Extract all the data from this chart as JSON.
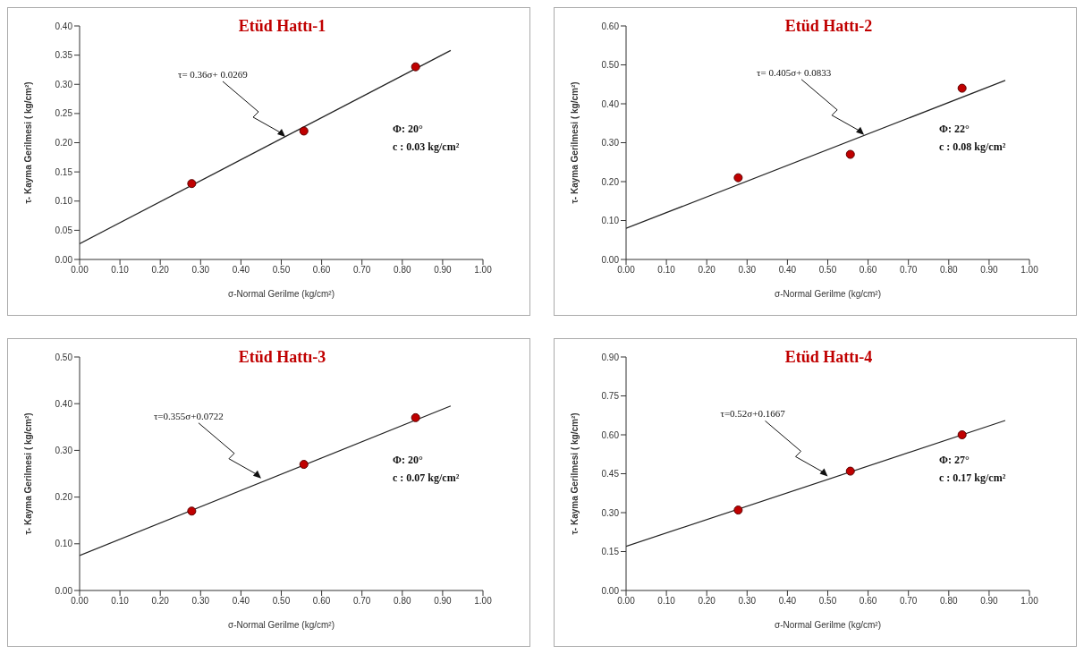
{
  "chart_data": [
    {
      "type": "scatter",
      "title": "Etüd Hattı-1",
      "xlabel": "σ-Normal Gerilme (kg/cm²)",
      "ylabel": "τ- Kayma Gerilmesi ( kg/cm²)",
      "grid": false,
      "legend": false,
      "xlim": [
        0,
        1
      ],
      "xticks": [
        {
          "value": 0,
          "label": "0.00"
        },
        {
          "value": 0.1,
          "label": "0.10"
        },
        {
          "value": 0.2,
          "label": "0.20"
        },
        {
          "value": 0.3,
          "label": "0.30"
        },
        {
          "value": 0.4,
          "label": "0.40"
        },
        {
          "value": 0.5,
          "label": "0.50"
        },
        {
          "value": 0.6,
          "label": "0.60"
        },
        {
          "value": 0.7,
          "label": "0.70"
        },
        {
          "value": 0.8,
          "label": "0.80"
        },
        {
          "value": 0.9,
          "label": "0.90"
        },
        {
          "value": 1,
          "label": "1.00"
        }
      ],
      "ylim": [
        0,
        0.4
      ],
      "yticks": [
        {
          "value": 0,
          "label": "0.00"
        },
        {
          "value": 0.05,
          "label": "0.05"
        },
        {
          "value": 0.1,
          "label": "0.10"
        },
        {
          "value": 0.15,
          "label": "0.15"
        },
        {
          "value": 0.2,
          "label": "0.20"
        },
        {
          "value": 0.25,
          "label": "0.25"
        },
        {
          "value": 0.3,
          "label": "0.30"
        },
        {
          "value": 0.35,
          "label": "0.35"
        },
        {
          "value": 0.4,
          "label": "0.40"
        }
      ],
      "series": [
        {
          "marker": "circle",
          "color": "#c00000",
          "x": [
            0.278,
            0.556,
            0.833
          ],
          "values": [
            0.13,
            0.22,
            0.33
          ]
        },
        {
          "type": "line",
          "marker": "none",
          "color": "#222222",
          "x": [
            0,
            0.92
          ],
          "values": [
            0.027,
            0.358
          ]
        }
      ],
      "annotations": [
        {
          "text": "τ= 0.36σ+ 0.0269",
          "x": 0.51,
          "y": 0.21
        },
        "Φ: 20°",
        "c : 0.03 kg/cm²"
      ]
    },
    {
      "type": "scatter",
      "title": "Etüd Hattı-2",
      "xlabel": "σ-Normal Gerilme (kg/cm²)",
      "ylabel": "τ- Kayma Gerilmesi ( kg/cm²)",
      "grid": false,
      "legend": false,
      "xlim": [
        0,
        1
      ],
      "xticks": [
        {
          "value": 0,
          "label": "0.00"
        },
        {
          "value": 0.1,
          "label": "0.10"
        },
        {
          "value": 0.2,
          "label": "0.20"
        },
        {
          "value": 0.3,
          "label": "0.30"
        },
        {
          "value": 0.4,
          "label": "0.40"
        },
        {
          "value": 0.5,
          "label": "0.50"
        },
        {
          "value": 0.6,
          "label": "0.60"
        },
        {
          "value": 0.7,
          "label": "0.70"
        },
        {
          "value": 0.8,
          "label": "0.80"
        },
        {
          "value": 0.9,
          "label": "0.90"
        },
        {
          "value": 1,
          "label": "1.00"
        }
      ],
      "ylim": [
        0,
        0.6
      ],
      "yticks": [
        {
          "value": 0,
          "label": "0.00"
        },
        {
          "value": 0.1,
          "label": "0.10"
        },
        {
          "value": 0.2,
          "label": "0.20"
        },
        {
          "value": 0.3,
          "label": "0.30"
        },
        {
          "value": 0.4,
          "label": "0.40"
        },
        {
          "value": 0.5,
          "label": "0.50"
        },
        {
          "value": 0.6,
          "label": "0.60"
        }
      ],
      "series": [
        {
          "marker": "circle",
          "color": "#c00000",
          "x": [
            0.278,
            0.556,
            0.833
          ],
          "values": [
            0.21,
            0.27,
            0.44
          ]
        },
        {
          "type": "line",
          "marker": "none",
          "color": "#222222",
          "x": [
            0,
            0.94
          ],
          "values": [
            0.08,
            0.46
          ]
        }
      ],
      "annotations": [
        {
          "text": "τ= 0.405σ+ 0.0833",
          "x": 0.59,
          "y": 0.32
        },
        "Φ: 22°",
        "c : 0.08 kg/cm²"
      ]
    },
    {
      "type": "scatter",
      "title": "Etüd Hattı-3",
      "xlabel": "σ-Normal Gerilme (kg/cm²)",
      "ylabel": "τ- Kayma Gerilmesi ( kg/cm²)",
      "grid": false,
      "legend": false,
      "xlim": [
        0,
        1
      ],
      "xticks": [
        {
          "value": 0,
          "label": "0.00"
        },
        {
          "value": 0.1,
          "label": "0.10"
        },
        {
          "value": 0.2,
          "label": "0.20"
        },
        {
          "value": 0.3,
          "label": "0.30"
        },
        {
          "value": 0.4,
          "label": "0.40"
        },
        {
          "value": 0.5,
          "label": "0.50"
        },
        {
          "value": 0.6,
          "label": "0.60"
        },
        {
          "value": 0.7,
          "label": "0.70"
        },
        {
          "value": 0.8,
          "label": "0.80"
        },
        {
          "value": 0.9,
          "label": "0.90"
        },
        {
          "value": 1,
          "label": "1.00"
        }
      ],
      "ylim": [
        0,
        0.5
      ],
      "yticks": [
        {
          "value": 0,
          "label": "0.00"
        },
        {
          "value": 0.1,
          "label": "0.10"
        },
        {
          "value": 0.2,
          "label": "0.20"
        },
        {
          "value": 0.3,
          "label": "0.30"
        },
        {
          "value": 0.4,
          "label": "0.40"
        },
        {
          "value": 0.5,
          "label": "0.50"
        }
      ],
      "series": [
        {
          "marker": "circle",
          "color": "#c00000",
          "x": [
            0.278,
            0.556,
            0.833
          ],
          "values": [
            0.17,
            0.27,
            0.37
          ]
        },
        {
          "type": "line",
          "marker": "none",
          "color": "#222222",
          "x": [
            0,
            0.92
          ],
          "values": [
            0.075,
            0.395
          ]
        }
      ],
      "annotations": [
        {
          "text": "τ=0.355σ+0.0722",
          "x": 0.45,
          "y": 0.24
        },
        "Φ: 20°",
        "c : 0.07 kg/cm²"
      ]
    },
    {
      "type": "scatter",
      "title": "Etüd Hattı-4",
      "xlabel": "σ-Normal Gerilme (kg/cm²)",
      "ylabel": "τ- Kayma Gerilmesi ( kg/cm²)",
      "grid": false,
      "legend": false,
      "xlim": [
        0,
        1
      ],
      "xticks": [
        {
          "value": 0,
          "label": "0.00"
        },
        {
          "value": 0.1,
          "label": "0.10"
        },
        {
          "value": 0.2,
          "label": "0.20"
        },
        {
          "value": 0.3,
          "label": "0.30"
        },
        {
          "value": 0.4,
          "label": "0.40"
        },
        {
          "value": 0.5,
          "label": "0.50"
        },
        {
          "value": 0.6,
          "label": "0.60"
        },
        {
          "value": 0.7,
          "label": "0.70"
        },
        {
          "value": 0.8,
          "label": "0.80"
        },
        {
          "value": 0.9,
          "label": "0.90"
        },
        {
          "value": 1,
          "label": "1.00"
        }
      ],
      "ylim": [
        0,
        0.9
      ],
      "yticks": [
        {
          "value": 0,
          "label": "0.00"
        },
        {
          "value": 0.15,
          "label": "0.15"
        },
        {
          "value": 0.3,
          "label": "0.30"
        },
        {
          "value": 0.45,
          "label": "0.45"
        },
        {
          "value": 0.6,
          "label": "0.60"
        },
        {
          "value": 0.75,
          "label": "0.75"
        },
        {
          "value": 0.9,
          "label": "0.90"
        }
      ],
      "series": [
        {
          "marker": "circle",
          "color": "#c00000",
          "x": [
            0.278,
            0.556,
            0.833
          ],
          "values": [
            0.31,
            0.46,
            0.6
          ]
        },
        {
          "type": "line",
          "marker": "none",
          "color": "#222222",
          "x": [
            0,
            0.94
          ],
          "values": [
            0.17,
            0.655
          ]
        }
      ],
      "annotations": [
        {
          "text": "τ=0.52σ+0.1667",
          "x": 0.5,
          "y": 0.44
        },
        "Φ: 27°",
        "c : 0.17 kg/cm²"
      ]
    }
  ]
}
